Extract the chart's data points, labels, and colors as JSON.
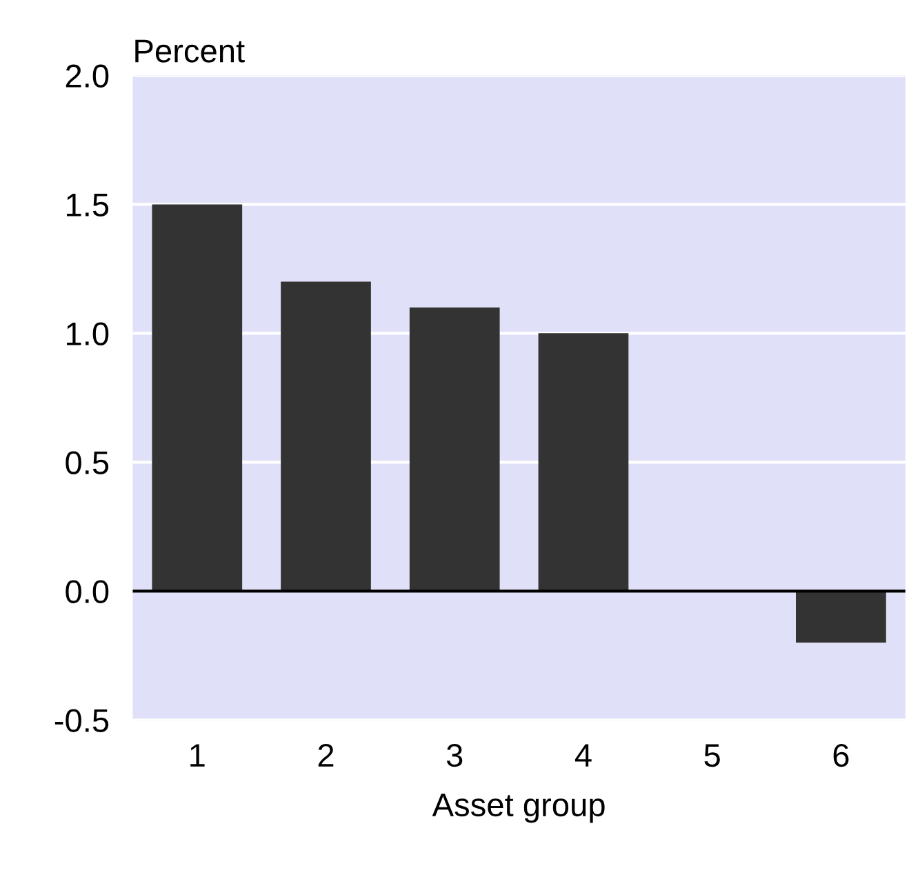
{
  "chart_data": {
    "type": "bar",
    "ylabel": "Percent",
    "xlabel": "Asset group",
    "categories": [
      "1",
      "2",
      "3",
      "4",
      "5",
      "6"
    ],
    "values": [
      1.5,
      1.2,
      1.1,
      1.0,
      0.0,
      -0.2
    ],
    "color": "#333333",
    "ylim": [
      -0.5,
      2.0
    ],
    "yticks": [
      {
        "value": -0.5,
        "label": "-0.5"
      },
      {
        "value": 0.0,
        "label": "0.0"
      },
      {
        "value": 0.5,
        "label": "0.5"
      },
      {
        "value": 1.0,
        "label": "1.0"
      },
      {
        "value": 1.5,
        "label": "1.5"
      },
      {
        "value": 2.0,
        "label": "2.0"
      }
    ],
    "grid": "y",
    "ref_lines": [
      {
        "axis": "y",
        "value": 0,
        "label": null,
        "color": "#000000"
      }
    ]
  }
}
